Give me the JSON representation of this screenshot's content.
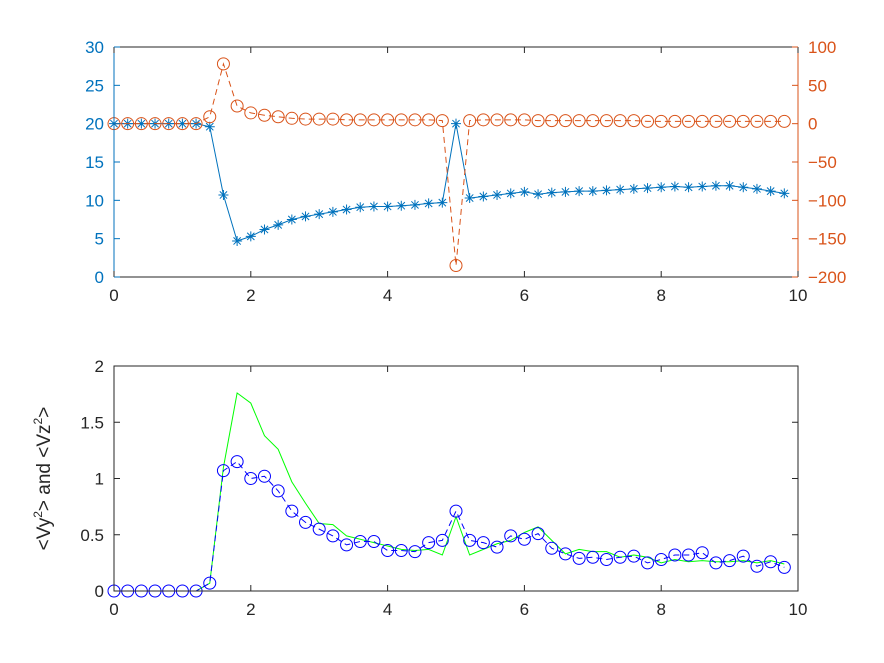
{
  "chart_data": [
    {
      "type": "line",
      "panel": "top",
      "xlim": [
        0,
        10
      ],
      "xticks": [
        "0",
        "2",
        "4",
        "6",
        "8",
        "10"
      ],
      "y_left": {
        "lim": [
          0,
          30
        ],
        "ticks": [
          "0",
          "5",
          "10",
          "15",
          "20",
          "25",
          "30"
        ],
        "color": "#0072BD"
      },
      "y_right": {
        "lim": [
          -200,
          100
        ],
        "ticks": [
          "-200",
          "-150",
          "-100",
          "-50",
          "0",
          "50",
          "100"
        ],
        "color": "#D95319"
      },
      "grid": false,
      "series": [
        {
          "axis": "left",
          "color": "#0072BD",
          "line": "solid",
          "marker": "asterisk",
          "x": [
            0,
            0.2,
            0.4,
            0.6,
            0.8,
            1.0,
            1.2,
            1.4,
            1.6,
            1.8,
            2.0,
            2.2,
            2.4,
            2.6,
            2.8,
            3.0,
            3.2,
            3.4,
            3.6,
            3.8,
            4.0,
            4.2,
            4.4,
            4.6,
            4.8,
            5.0,
            5.2,
            5.4,
            5.6,
            5.8,
            6.0,
            6.2,
            6.4,
            6.6,
            6.8,
            7.0,
            7.2,
            7.4,
            7.6,
            7.8,
            8.0,
            8.2,
            8.4,
            8.6,
            8.8,
            9.0,
            9.2,
            9.4,
            9.6,
            9.8
          ],
          "y": [
            20,
            20,
            20,
            20,
            20,
            20,
            20,
            19.6,
            10.7,
            4.7,
            5.3,
            6.2,
            6.8,
            7.5,
            7.9,
            8.2,
            8.5,
            8.8,
            9.1,
            9.2,
            9.2,
            9.3,
            9.4,
            9.6,
            9.7,
            20.0,
            10.3,
            10.5,
            10.7,
            10.9,
            11.1,
            10.8,
            11.0,
            11.1,
            11.2,
            11.2,
            11.3,
            11.4,
            11.5,
            11.6,
            11.7,
            11.8,
            11.7,
            11.8,
            11.9,
            11.9,
            11.7,
            11.5,
            11.2,
            10.9
          ]
        },
        {
          "axis": "right",
          "color": "#D95319",
          "line": "dashed",
          "marker": "circle",
          "x": [
            0,
            0.2,
            0.4,
            0.6,
            0.8,
            1.0,
            1.2,
            1.4,
            1.6,
            1.8,
            2.0,
            2.2,
            2.4,
            2.6,
            2.8,
            3.0,
            3.2,
            3.4,
            3.6,
            3.8,
            4.0,
            4.2,
            4.4,
            4.6,
            4.8,
            5.0,
            5.2,
            5.4,
            5.6,
            5.8,
            6.0,
            6.2,
            6.4,
            6.6,
            6.8,
            7.0,
            7.2,
            7.4,
            7.6,
            7.8,
            8.0,
            8.2,
            8.4,
            8.6,
            8.8,
            9.0,
            9.2,
            9.4,
            9.6,
            9.8
          ],
          "y": [
            0,
            0,
            0,
            0,
            0,
            0,
            0,
            9,
            78,
            23,
            14,
            11,
            9,
            7,
            6,
            6,
            6,
            5,
            5,
            5,
            5,
            5,
            5,
            5,
            4,
            -185,
            4,
            5,
            5,
            5,
            5,
            4,
            4,
            4,
            4,
            4,
            4,
            4,
            4,
            3,
            3,
            3,
            3,
            3,
            3,
            3,
            3,
            3,
            3,
            3
          ]
        }
      ]
    },
    {
      "type": "line",
      "panel": "bottom",
      "ylabel_base": [
        "<Vy",
        "> and <Vz",
        ">"
      ],
      "ylabel_sup": [
        "2",
        "2"
      ],
      "xlim": [
        0,
        10
      ],
      "ylim": [
        0,
        2
      ],
      "xticks": [
        "0",
        "2",
        "4",
        "6",
        "8",
        "10"
      ],
      "yticks": [
        "0",
        "0.5",
        "1",
        "1.5",
        "2"
      ],
      "grid": false,
      "series": [
        {
          "color": "#0000FF",
          "line": "dashed",
          "marker": "circle",
          "x": [
            0,
            0.2,
            0.4,
            0.6,
            0.8,
            1.0,
            1.2,
            1.4,
            1.6,
            1.8,
            2.0,
            2.2,
            2.4,
            2.6,
            2.8,
            3.0,
            3.2,
            3.4,
            3.6,
            3.8,
            4.0,
            4.2,
            4.4,
            4.6,
            4.8,
            5.0,
            5.2,
            5.4,
            5.6,
            5.8,
            6.0,
            6.2,
            6.4,
            6.6,
            6.8,
            7.0,
            7.2,
            7.4,
            7.6,
            7.8,
            8.0,
            8.2,
            8.4,
            8.6,
            8.8,
            9.0,
            9.2,
            9.4,
            9.6,
            9.8
          ],
          "y": [
            0,
            0,
            0,
            0,
            0,
            0,
            0,
            0.07,
            1.07,
            1.15,
            1.0,
            1.02,
            0.89,
            0.71,
            0.61,
            0.55,
            0.49,
            0.41,
            0.44,
            0.44,
            0.36,
            0.36,
            0.35,
            0.43,
            0.45,
            0.71,
            0.45,
            0.43,
            0.39,
            0.49,
            0.46,
            0.51,
            0.38,
            0.33,
            0.29,
            0.3,
            0.28,
            0.3,
            0.31,
            0.25,
            0.28,
            0.32,
            0.32,
            0.34,
            0.25,
            0.27,
            0.31,
            0.22,
            0.26,
            0.21
          ]
        },
        {
          "color": "#00FF00",
          "line": "solid",
          "marker": "none",
          "x": [
            0,
            0.2,
            0.4,
            0.6,
            0.8,
            1.0,
            1.2,
            1.4,
            1.6,
            1.8,
            2.0,
            2.2,
            2.4,
            2.6,
            2.8,
            3.0,
            3.2,
            3.4,
            3.6,
            3.8,
            4.0,
            4.2,
            4.4,
            4.6,
            4.8,
            5.0,
            5.2,
            5.4,
            5.6,
            5.8,
            6.0,
            6.2,
            6.4,
            6.6,
            6.8,
            7.0,
            7.2,
            7.4,
            7.6,
            7.8,
            8.0,
            8.2,
            8.4,
            8.6,
            8.8,
            9.0,
            9.2,
            9.4,
            9.6,
            9.8
          ],
          "y": [
            0,
            0,
            0,
            0,
            0,
            0,
            0,
            0.07,
            1.1,
            1.76,
            1.67,
            1.38,
            1.26,
            0.97,
            0.78,
            0.6,
            0.59,
            0.49,
            0.46,
            0.43,
            0.4,
            0.37,
            0.36,
            0.37,
            0.32,
            0.66,
            0.32,
            0.37,
            0.42,
            0.45,
            0.52,
            0.57,
            0.45,
            0.33,
            0.37,
            0.35,
            0.35,
            0.3,
            0.32,
            0.3,
            0.25,
            0.28,
            0.26,
            0.27,
            0.26,
            0.26,
            0.27,
            0.25,
            0.27,
            0.24
          ]
        }
      ]
    }
  ]
}
